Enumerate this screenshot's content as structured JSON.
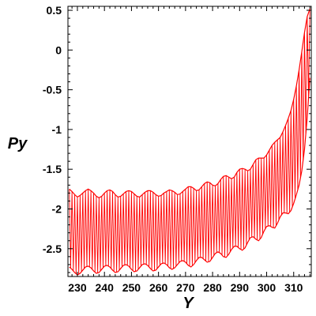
{
  "chart_data": {
    "type": "line",
    "xlabel": "Y",
    "ylabel": "Py",
    "xlim": [
      226.5,
      316.5
    ],
    "ylim": [
      -2.85,
      0.55
    ],
    "grid": false,
    "legend": "none",
    "colors": {
      "series": "#ff0000",
      "axis": "#000000",
      "background": "#ffffff"
    },
    "x_ticks": [
      {
        "value": 230,
        "label": "230"
      },
      {
        "value": 240,
        "label": "240"
      },
      {
        "value": 250,
        "label": "250"
      },
      {
        "value": 260,
        "label": "260"
      },
      {
        "value": 270,
        "label": "270"
      },
      {
        "value": 280,
        "label": "280"
      },
      {
        "value": 290,
        "label": "290"
      },
      {
        "value": 300,
        "label": "300"
      },
      {
        "value": 310,
        "label": "310"
      }
    ],
    "y_ticks": [
      {
        "value": 0.5,
        "label": "0.5"
      },
      {
        "value": 0,
        "label": "0"
      },
      {
        "value": -0.5,
        "label": "-0.5"
      },
      {
        "value": -1,
        "label": "-1"
      },
      {
        "value": -1.5,
        "label": "-1.5"
      },
      {
        "value": -2,
        "label": "-2"
      },
      {
        "value": -2.5,
        "label": "-2.5"
      }
    ],
    "series": [
      {
        "x": [
          227,
          228,
          229,
          230,
          231,
          232,
          233,
          234,
          235,
          236,
          237,
          238,
          239,
          240,
          241,
          242,
          243,
          244,
          245,
          246,
          247,
          248,
          249,
          250,
          251,
          252,
          253,
          254,
          255,
          256,
          257,
          258,
          259,
          260,
          261,
          262,
          263,
          264,
          265,
          266,
          267,
          268,
          269,
          270,
          271,
          272,
          273,
          274,
          275,
          276,
          277,
          278,
          279,
          280,
          281,
          282,
          283,
          284,
          285,
          286,
          287,
          288,
          289,
          290,
          291,
          292,
          293,
          294,
          295,
          296,
          297,
          298,
          299,
          300,
          301,
          302,
          303,
          304,
          305,
          306,
          307,
          308,
          309,
          310,
          311,
          312,
          313,
          314,
          315,
          316
        ],
        "upper": [
          -1.75,
          -1.78,
          -1.82,
          -1.85,
          -1.83,
          -1.8,
          -1.77,
          -1.75,
          -1.77,
          -1.8,
          -1.84,
          -1.86,
          -1.84,
          -1.8,
          -1.77,
          -1.76,
          -1.78,
          -1.82,
          -1.85,
          -1.84,
          -1.81,
          -1.78,
          -1.77,
          -1.78,
          -1.81,
          -1.84,
          -1.85,
          -1.82,
          -1.79,
          -1.77,
          -1.77,
          -1.79,
          -1.82,
          -1.84,
          -1.83,
          -1.8,
          -1.78,
          -1.76,
          -1.77,
          -1.79,
          -1.82,
          -1.81,
          -1.78,
          -1.75,
          -1.72,
          -1.72,
          -1.74,
          -1.77,
          -1.76,
          -1.72,
          -1.68,
          -1.66,
          -1.67,
          -1.7,
          -1.71,
          -1.68,
          -1.63,
          -1.59,
          -1.58,
          -1.6,
          -1.62,
          -1.6,
          -1.54,
          -1.5,
          -1.49,
          -1.5,
          -1.52,
          -1.5,
          -1.44,
          -1.38,
          -1.36,
          -1.36,
          -1.36,
          -1.32,
          -1.26,
          -1.2,
          -1.16,
          -1.13,
          -1.1,
          -1.03,
          -0.95,
          -0.86,
          -0.76,
          -0.62,
          -0.45,
          -0.25,
          -0.02,
          0.22,
          0.42,
          0.52
        ],
        "lower": [
          -2.73,
          -2.76,
          -2.8,
          -2.83,
          -2.81,
          -2.77,
          -2.73,
          -2.72,
          -2.74,
          -2.78,
          -2.81,
          -2.8,
          -2.76,
          -2.72,
          -2.71,
          -2.73,
          -2.77,
          -2.8,
          -2.79,
          -2.75,
          -2.71,
          -2.7,
          -2.72,
          -2.76,
          -2.79,
          -2.78,
          -2.74,
          -2.7,
          -2.69,
          -2.71,
          -2.75,
          -2.78,
          -2.77,
          -2.73,
          -2.69,
          -2.68,
          -2.7,
          -2.74,
          -2.76,
          -2.74,
          -2.7,
          -2.66,
          -2.65,
          -2.67,
          -2.71,
          -2.73,
          -2.7,
          -2.65,
          -2.61,
          -2.61,
          -2.64,
          -2.67,
          -2.66,
          -2.61,
          -2.56,
          -2.54,
          -2.56,
          -2.6,
          -2.61,
          -2.57,
          -2.51,
          -2.47,
          -2.47,
          -2.5,
          -2.52,
          -2.49,
          -2.42,
          -2.36,
          -2.35,
          -2.38,
          -2.4,
          -2.36,
          -2.28,
          -2.22,
          -2.21,
          -2.23,
          -2.24,
          -2.18,
          -2.1,
          -2.05,
          -2.05,
          -2.06,
          -2.02,
          -1.93,
          -1.82,
          -1.7,
          -1.52,
          -1.25,
          -0.85,
          -0.35
        ]
      }
    ]
  }
}
